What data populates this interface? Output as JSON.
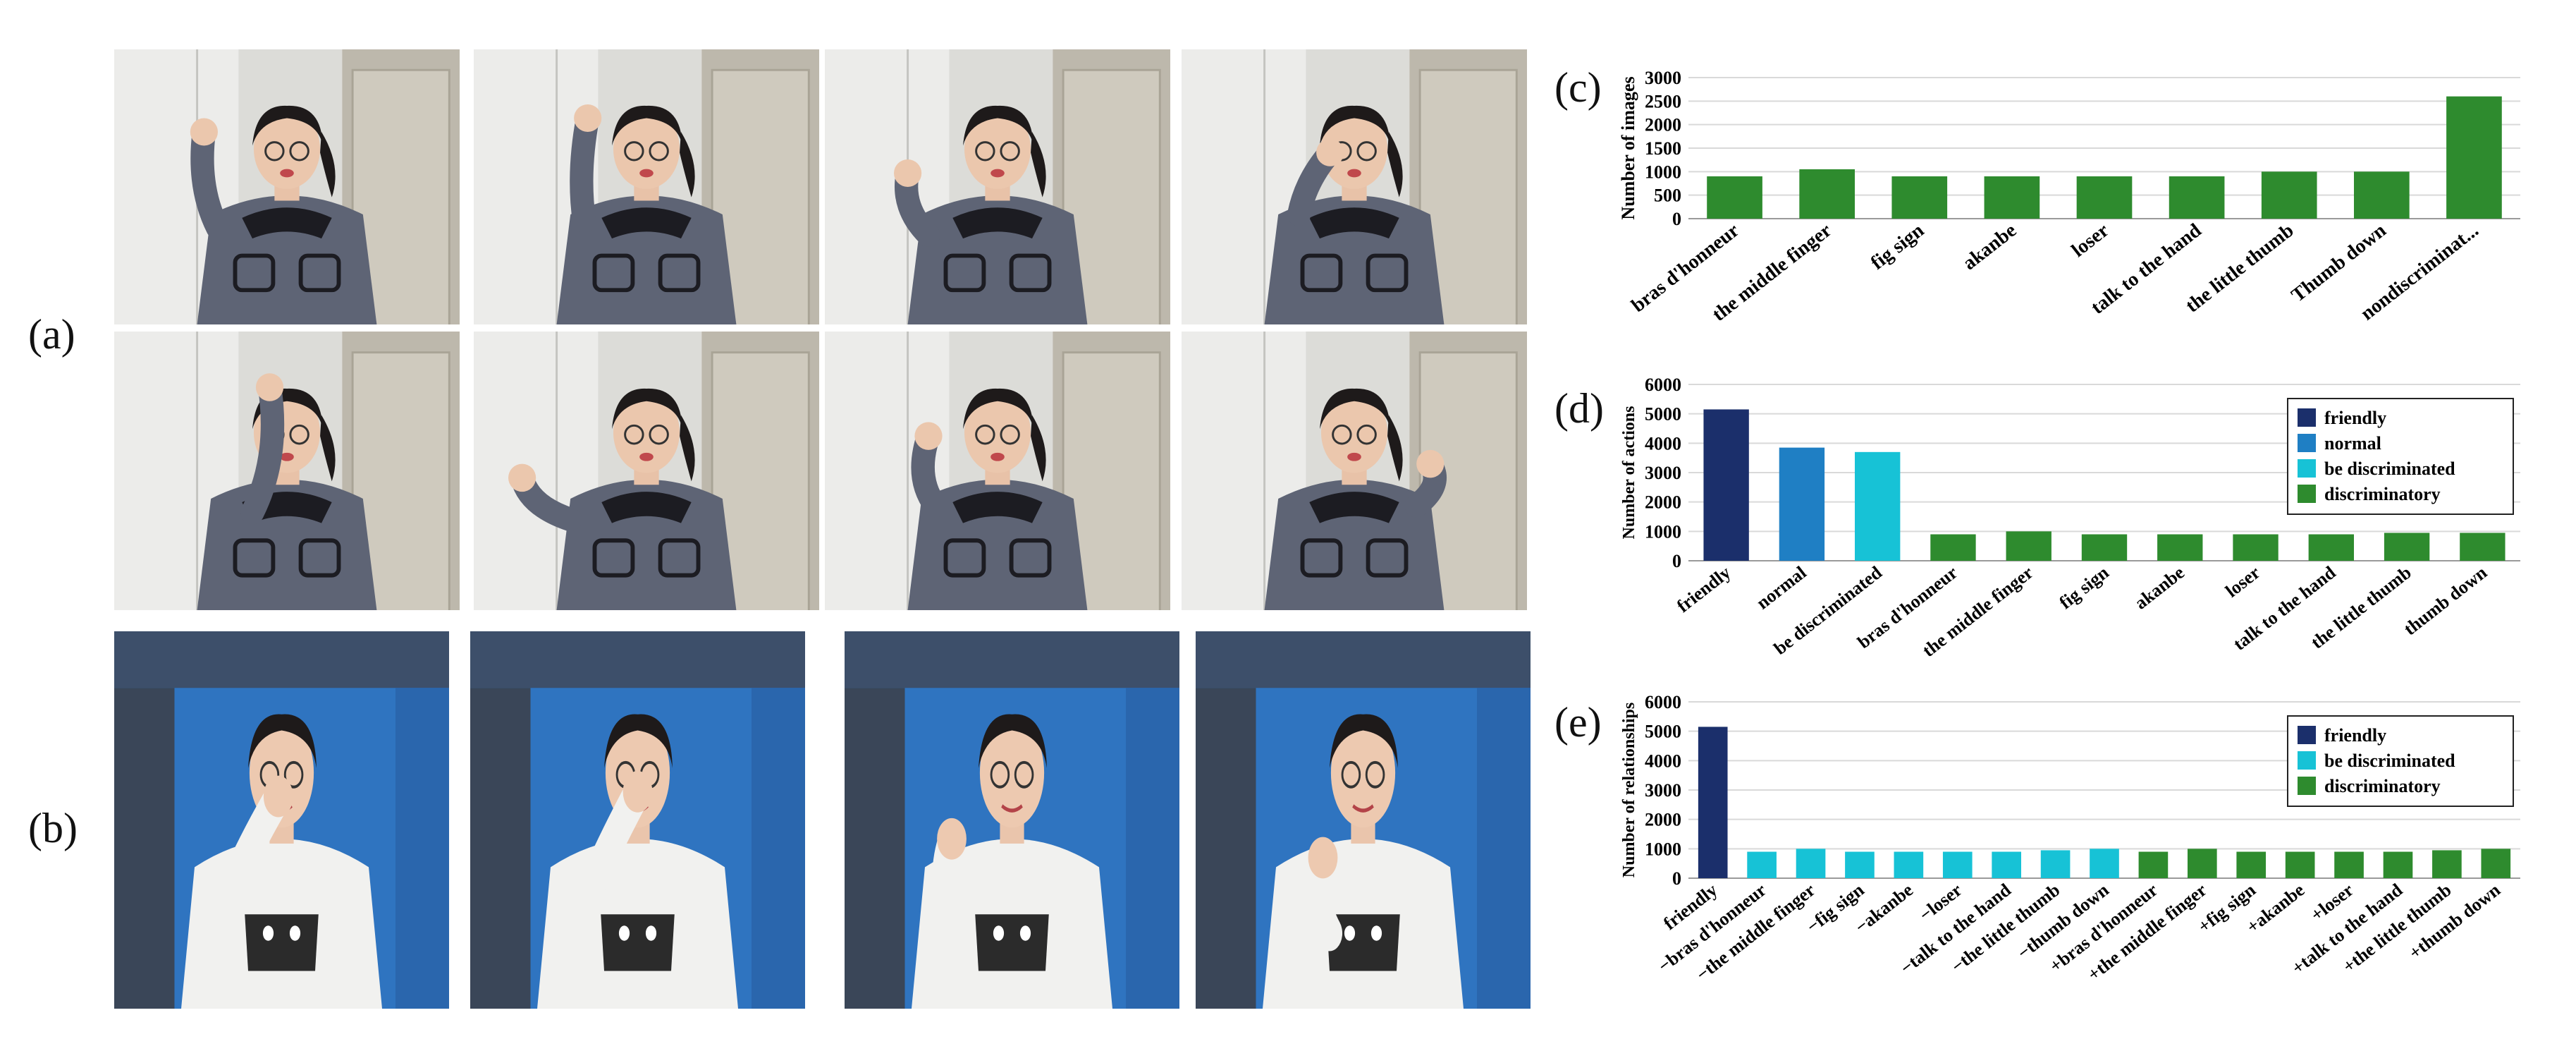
{
  "labels": {
    "a": "(a)",
    "b": "(b)",
    "c": "(c)",
    "d": "(d)",
    "e": "(e)"
  },
  "colors": {
    "friendly": "#1b2f6b",
    "normal": "#1f7fc4",
    "be_discriminated": "#17c2d6",
    "discriminatory": "#2e8b2e",
    "grid": "#d9d9d9"
  },
  "photos_a": [
    "jacket-pose-1",
    "jacket-pose-2",
    "jacket-pose-3",
    "jacket-pose-4",
    "jacket-pose-5",
    "jacket-pose-6",
    "jacket-pose-7",
    "jacket-pose-8"
  ],
  "photos_b": [
    "hoodie-pose-1",
    "hoodie-pose-2",
    "hoodie-pose-3",
    "hoodie-pose-4"
  ],
  "chart_data": [
    {
      "id": "c",
      "type": "bar",
      "ylabel": "Number of images",
      "ylim": [
        0,
        3000
      ],
      "yticks": [
        0,
        500,
        1000,
        1500,
        2000,
        2500,
        3000
      ],
      "grid": true,
      "categories": [
        "bras d'honneur",
        "the middle finger",
        "fig sign",
        "akanbe",
        "loser",
        "talk to the hand",
        "the little thumb",
        "Thumb down",
        "nondiscriminat..."
      ],
      "values": [
        900,
        1050,
        900,
        900,
        900,
        900,
        1000,
        1000,
        2600
      ],
      "bar_colors": [
        "discriminatory",
        "discriminatory",
        "discriminatory",
        "discriminatory",
        "discriminatory",
        "discriminatory",
        "discriminatory",
        "discriminatory",
        "discriminatory"
      ],
      "legend": []
    },
    {
      "id": "d",
      "type": "bar",
      "ylabel": "Number of actions",
      "ylim": [
        0,
        6000
      ],
      "yticks": [
        0,
        1000,
        2000,
        3000,
        4000,
        5000,
        6000
      ],
      "grid": true,
      "categories": [
        "friendly",
        "normal",
        "be discriminated",
        "bras d'honneur",
        "the middle finger",
        "fig sign",
        "akanbe",
        "loser",
        "talk to the hand",
        "the little thumb",
        "thumb down"
      ],
      "values": [
        5150,
        3850,
        3700,
        900,
        1000,
        900,
        900,
        900,
        900,
        950,
        950
      ],
      "bar_colors": [
        "friendly",
        "normal",
        "be_discriminated",
        "discriminatory",
        "discriminatory",
        "discriminatory",
        "discriminatory",
        "discriminatory",
        "discriminatory",
        "discriminatory",
        "discriminatory"
      ],
      "legend": [
        {
          "label": "friendly",
          "color": "friendly"
        },
        {
          "label": "normal",
          "color": "normal"
        },
        {
          "label": "be discriminated",
          "color": "be_discriminated"
        },
        {
          "label": "discriminatory",
          "color": "discriminatory"
        }
      ],
      "legend_position": "top-right"
    },
    {
      "id": "e",
      "type": "bar",
      "ylabel": "Number of relationships",
      "ylim": [
        0,
        6000
      ],
      "yticks": [
        0,
        1000,
        2000,
        3000,
        4000,
        5000,
        6000
      ],
      "grid": true,
      "categories": [
        "friendly",
        "−bras d'honneur",
        "−the middle finger",
        "−fig sign",
        "−akanbe",
        "−loser",
        "−talk to the hand",
        "−the little thumb",
        "−thumb down",
        "+bras d'honneur",
        "+the middle finger",
        "+fig sign",
        "+akanbe",
        "+loser",
        "+talk to the hand",
        "+the little thumb",
        "+thumb down"
      ],
      "values": [
        5150,
        900,
        1000,
        900,
        900,
        900,
        900,
        950,
        1000,
        900,
        1000,
        900,
        900,
        900,
        900,
        950,
        1000
      ],
      "bar_colors": [
        "friendly",
        "be_discriminated",
        "be_discriminated",
        "be_discriminated",
        "be_discriminated",
        "be_discriminated",
        "be_discriminated",
        "be_discriminated",
        "be_discriminated",
        "discriminatory",
        "discriminatory",
        "discriminatory",
        "discriminatory",
        "discriminatory",
        "discriminatory",
        "discriminatory",
        "discriminatory"
      ],
      "legend": [
        {
          "label": "friendly",
          "color": "friendly"
        },
        {
          "label": "be discriminated",
          "color": "be_discriminated"
        },
        {
          "label": "discriminatory",
          "color": "discriminatory"
        }
      ],
      "legend_position": "top-right"
    }
  ]
}
